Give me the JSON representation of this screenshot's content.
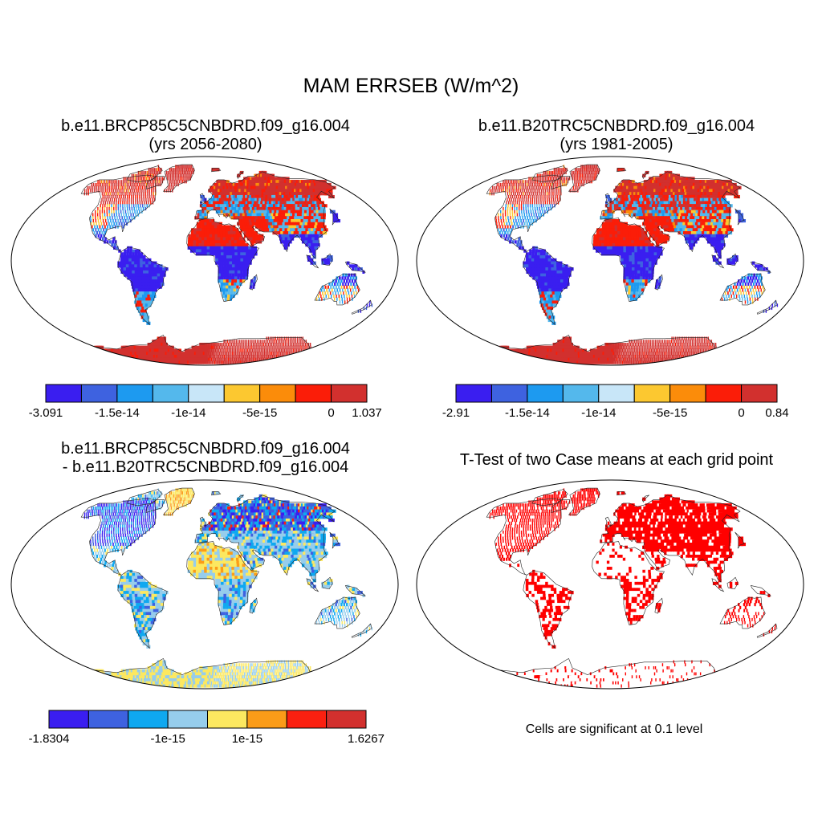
{
  "title": "MAM ERRSEB (W/m^2)",
  "panels": [
    {
      "id": "p1",
      "title_line1": "b.e11.BRCP85C5CNBDRD.f09_g16.004",
      "title_line2": "(yrs 2056-2080)",
      "colorbar": {
        "colors": [
          "#3a1ef0",
          "#3e62e0",
          "#1d9af0",
          "#54b8ec",
          "#c8e6f8",
          "#fcc830",
          "#fb8c0a",
          "#fb1d08",
          "#d2302e"
        ],
        "labels": [
          "-3.091",
          "-1.5e-14",
          "-1e-14",
          "-5e-15",
          "0",
          "1.037"
        ]
      }
    },
    {
      "id": "p2",
      "title_line1": "b.e11.B20TRC5CNBDRD.f09_g16.004",
      "title_line2": "(yrs 1981-2005)",
      "colorbar": {
        "colors": [
          "#3a1ef0",
          "#3e62e0",
          "#1d9af0",
          "#54b8ec",
          "#c8e6f8",
          "#fcc830",
          "#fb8c0a",
          "#fb1d08",
          "#d2302e"
        ],
        "labels": [
          "-2.91",
          "-1.5e-14",
          "-1e-14",
          "-5e-15",
          "0",
          "0.84"
        ]
      }
    },
    {
      "id": "p3",
      "title_line1": "b.e11.BRCP85C5CNBDRD.f09_g16.004",
      "title_line2": "- b.e11.B20TRC5CNBDRD.f09_g16.004",
      "colorbar": {
        "colors": [
          "#3a1ef0",
          "#3e62e0",
          "#0fa8f0",
          "#96cdec",
          "#fce860",
          "#fb9c18",
          "#fb2010",
          "#d2302e"
        ],
        "labels": [
          "-1.8304",
          "-1e-15",
          "1e-15",
          "1.6267"
        ]
      }
    },
    {
      "id": "p4",
      "title_line1": "T-Test of two Case means at each grid point",
      "note": "Cells are significant at 0.1 level"
    }
  ]
}
